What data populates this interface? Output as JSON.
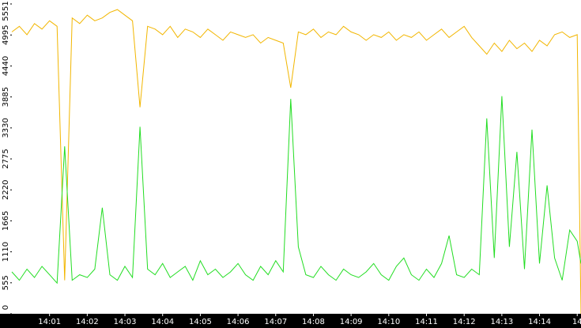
{
  "chart_data": {
    "type": "line",
    "x": [
      0,
      0.2,
      0.4,
      0.6,
      0.8,
      1.0,
      1.2,
      1.4,
      1.6,
      1.8,
      2.0,
      2.2,
      2.4,
      2.6,
      2.8,
      3.0,
      3.2,
      3.4,
      3.6,
      3.8,
      4.0,
      4.2,
      4.4,
      4.6,
      4.8,
      5.0,
      5.2,
      5.4,
      5.6,
      5.8,
      6.0,
      6.2,
      6.4,
      6.6,
      6.8,
      7.0,
      7.2,
      7.4,
      7.6,
      7.8,
      8.0,
      8.2,
      8.4,
      8.6,
      8.8,
      9.0,
      9.2,
      9.4,
      9.6,
      9.8,
      10.0,
      10.2,
      10.4,
      10.6,
      10.8,
      11.0,
      11.2,
      11.4,
      11.6,
      11.8,
      12.0,
      12.2,
      12.4,
      12.6,
      12.8,
      13.0,
      13.2,
      13.4,
      13.6,
      13.8,
      14.0,
      14.2,
      14.4,
      14.6,
      14.8,
      15.0,
      15.1
    ],
    "series": [
      {
        "color": "#f2b600",
        "values": [
          5050,
          5150,
          5000,
          5200,
          5100,
          5250,
          5150,
          600,
          5300,
          5200,
          5350,
          5250,
          5300,
          5400,
          5450,
          5350,
          5250,
          3700,
          5150,
          5100,
          5000,
          5150,
          4950,
          5100,
          5050,
          4950,
          5100,
          5000,
          4900,
          5050,
          5000,
          4950,
          5000,
          4850,
          4950,
          4900,
          4850,
          4050,
          5050,
          5000,
          5100,
          4950,
          5050,
          5000,
          5150,
          5050,
          5000,
          4900,
          5000,
          4950,
          5050,
          4900,
          5000,
          4950,
          5050,
          4900,
          5000,
          5100,
          4950,
          5050,
          5150,
          4950,
          4800,
          4650,
          4850,
          4700,
          4900,
          4750,
          4850,
          4700,
          4900,
          4800,
          5000,
          5050,
          4950,
          5000,
          0
        ]
      },
      {
        "color": "#22dd22",
        "values": [
          750,
          600,
          800,
          650,
          850,
          700,
          550,
          3000,
          600,
          700,
          650,
          800,
          1900,
          700,
          600,
          850,
          650,
          3350,
          800,
          700,
          900,
          650,
          750,
          850,
          600,
          950,
          700,
          800,
          650,
          750,
          900,
          700,
          600,
          850,
          700,
          950,
          750,
          3850,
          1200,
          700,
          650,
          850,
          700,
          600,
          800,
          700,
          650,
          750,
          900,
          700,
          600,
          850,
          1000,
          700,
          600,
          800,
          650,
          900,
          1400,
          700,
          650,
          800,
          700,
          3500,
          1000,
          3900,
          1200,
          2900,
          800,
          3300,
          900,
          2300,
          1000,
          600,
          1500,
          1300,
          900
        ]
      }
    ],
    "xlim": [
      0,
      15.1
    ],
    "xticks": [
      {
        "value": 1,
        "label": "14:01"
      },
      {
        "value": 2,
        "label": "14:02"
      },
      {
        "value": 3,
        "label": "14:03"
      },
      {
        "value": 4,
        "label": "14:04"
      },
      {
        "value": 5,
        "label": "14:05"
      },
      {
        "value": 6,
        "label": "14:06"
      },
      {
        "value": 7,
        "label": "14:07"
      },
      {
        "value": 8,
        "label": "14:08"
      },
      {
        "value": 9,
        "label": "14:09"
      },
      {
        "value": 10,
        "label": "14:10"
      },
      {
        "value": 11,
        "label": "14:11"
      },
      {
        "value": 12,
        "label": "14:12"
      },
      {
        "value": 13,
        "label": "14:13"
      },
      {
        "value": 14,
        "label": "14:14"
      },
      {
        "value": 15,
        "label": "14"
      }
    ],
    "ylim": [
      0,
      5551
    ],
    "yticks": [
      0,
      555,
      1110,
      1665,
      2220,
      2775,
      3330,
      3885,
      4440,
      4995,
      5551
    ],
    "grid": false
  }
}
